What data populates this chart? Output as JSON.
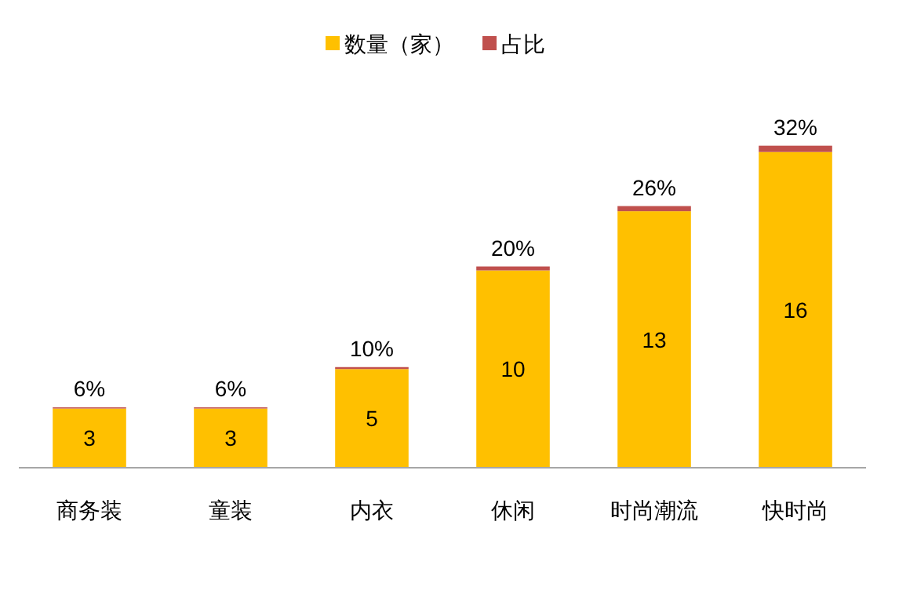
{
  "chart_data": {
    "type": "bar",
    "stacked": true,
    "legend": "top",
    "categories": [
      "商务装",
      "童装",
      "内衣",
      "休闲",
      "时尚潮流",
      "快时尚"
    ],
    "series": [
      {
        "name": "数量（家）",
        "color": "#ffc000",
        "values": [
          3,
          3,
          5,
          10,
          13,
          16
        ],
        "value_labels": [
          "3",
          "3",
          "5",
          "10",
          "13",
          "16"
        ]
      },
      {
        "name": "占比",
        "color": "#c0504d",
        "values": [
          0.06,
          0.06,
          0.1,
          0.2,
          0.26,
          0.32
        ],
        "value_labels": [
          "6%",
          "6%",
          "10%",
          "20%",
          "26%",
          "32%"
        ]
      }
    ]
  }
}
